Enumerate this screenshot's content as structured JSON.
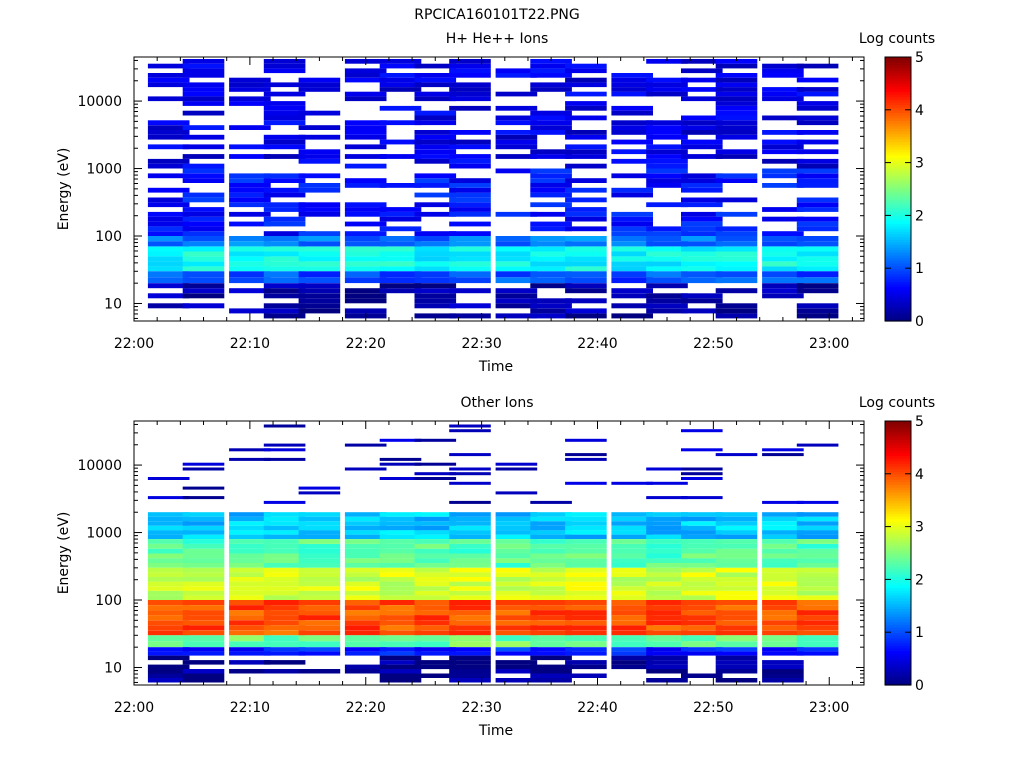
{
  "figure_title": "RPCICA160101T22.PNG",
  "chart_data": [
    {
      "type": "heatmap",
      "title": "H+ He++ Ions",
      "xlabel": "Time",
      "ylabel": "Energy (eV)",
      "y_scale": "log",
      "ylim": [
        5.5,
        45000
      ],
      "xlim": [
        "22:00",
        "23:03"
      ],
      "x_ticks": [
        "22:00",
        "22:10",
        "22:20",
        "22:30",
        "22:40",
        "22:50",
        "23:00"
      ],
      "y_ticks": [
        "10",
        "100",
        "1000",
        "10000"
      ],
      "colorbar": {
        "label": "Log counts",
        "range": [
          0,
          5
        ],
        "ticks": [
          "0",
          "1",
          "2",
          "3",
          "4",
          "5"
        ]
      },
      "x": [
        "22:03",
        "22:06",
        "22:10",
        "22:13",
        "22:16",
        "22:20",
        "22:23",
        "22:26",
        "22:29",
        "22:33",
        "22:36",
        "22:39",
        "22:43",
        "22:46",
        "22:49",
        "22:52",
        "22:56",
        "22:59"
      ],
      "bands": [
        {
          "e_min": 10000,
          "e_max": 42000,
          "log_counts": 0.5,
          "note": "sparse"
        },
        {
          "e_min": 1000,
          "e_max": 10000,
          "log_counts": 0.5,
          "note": "sparse"
        },
        {
          "e_min": 100,
          "e_max": 1000,
          "log_counts": 0.7,
          "note": "sparse"
        },
        {
          "e_min": 70,
          "e_max": 100,
          "log_counts": 1.2
        },
        {
          "e_min": 30,
          "e_max": 70,
          "log_counts": 1.9
        },
        {
          "e_min": 20,
          "e_max": 30,
          "log_counts": 1.0
        },
        {
          "e_min": 6,
          "e_max": 20,
          "log_counts": 0.2,
          "note": "sparse"
        }
      ]
    },
    {
      "type": "heatmap",
      "title": "Other Ions",
      "xlabel": "Time",
      "ylabel": "Energy (eV)",
      "y_scale": "log",
      "ylim": [
        5.5,
        45000
      ],
      "xlim": [
        "22:00",
        "23:03"
      ],
      "x_ticks": [
        "22:00",
        "22:10",
        "22:20",
        "22:30",
        "22:40",
        "22:50",
        "23:00"
      ],
      "y_ticks": [
        "10",
        "100",
        "1000",
        "10000"
      ],
      "colorbar": {
        "label": "Log counts",
        "range": [
          0,
          5
        ],
        "ticks": [
          "0",
          "1",
          "2",
          "3",
          "4",
          "5"
        ]
      },
      "x": [
        "22:03",
        "22:06",
        "22:10",
        "22:13",
        "22:16",
        "22:20",
        "22:23",
        "22:26",
        "22:29",
        "22:33",
        "22:36",
        "22:39",
        "22:43",
        "22:46",
        "22:49",
        "22:52",
        "22:56",
        "22:59"
      ],
      "bands": [
        {
          "e_min": 2500,
          "e_max": 40000,
          "log_counts": 0.3,
          "note": "sparse lines"
        },
        {
          "e_min": 800,
          "e_max": 2000,
          "log_counts": 1.6
        },
        {
          "e_min": 300,
          "e_max": 800,
          "log_counts": 2.3
        },
        {
          "e_min": 100,
          "e_max": 300,
          "log_counts": 2.9
        },
        {
          "e_min": 30,
          "e_max": 100,
          "log_counts": 4.0
        },
        {
          "e_min": 20,
          "e_max": 30,
          "log_counts": 2.4
        },
        {
          "e_min": 15,
          "e_max": 20,
          "log_counts": 0.8
        },
        {
          "e_min": 6,
          "e_max": 15,
          "log_counts": 0.1,
          "note": "sparse"
        }
      ]
    }
  ]
}
